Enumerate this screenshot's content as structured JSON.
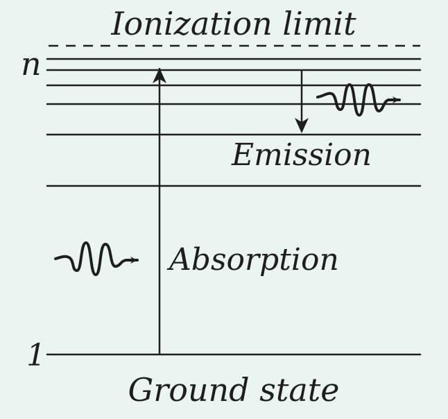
{
  "labels": {
    "ionization_limit": "Ionization limit",
    "level_top": "n",
    "level_bottom": "1",
    "emission": "Emission",
    "absorption": "Absorption",
    "ground_state": "Ground state"
  },
  "colors": {
    "background": "#eaf4f1",
    "ink": "#1e1e1e"
  }
}
